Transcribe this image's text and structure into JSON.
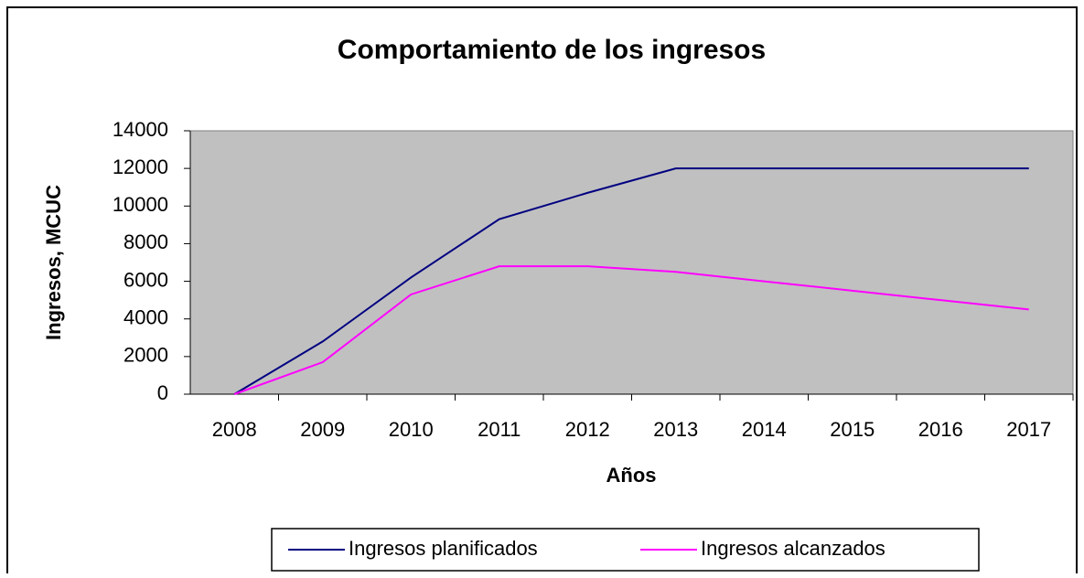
{
  "chart_data": {
    "type": "line",
    "title": "Comportamiento de los ingresos",
    "x_label": "Años",
    "y_label": "Ingresos, MCUC",
    "categories": [
      "2008",
      "2009",
      "2010",
      "2011",
      "2012",
      "2013",
      "2014",
      "2015",
      "2016",
      "2017"
    ],
    "series": [
      {
        "name": "Ingresos planificados",
        "color": "#000080",
        "values": [
          0,
          2800,
          6200,
          9300,
          10700,
          12000,
          12000,
          12000,
          12000,
          12000
        ]
      },
      {
        "name": "Ingresos alcanzados",
        "color": "#ff00ff",
        "values": [
          0,
          1700,
          5300,
          6800,
          6800,
          6500,
          6000,
          5500,
          5000,
          4500
        ]
      }
    ],
    "ylim": [
      0,
      14000
    ],
    "yticks": [
      0,
      2000,
      4000,
      6000,
      8000,
      10000,
      12000,
      14000
    ],
    "plot_background": "#c0c0c0",
    "legend": "bottom"
  }
}
